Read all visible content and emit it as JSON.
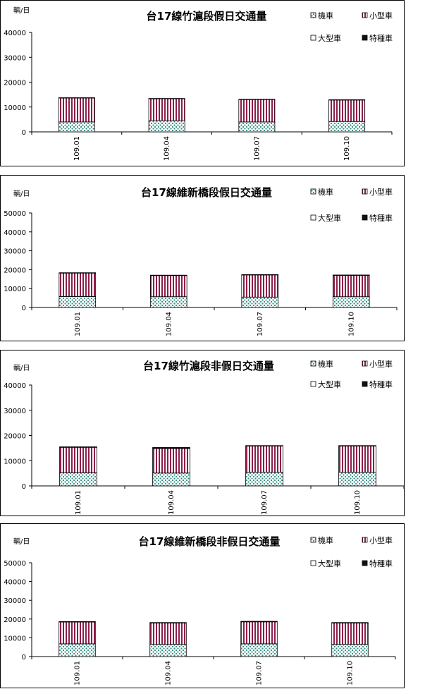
{
  "chart_data": [
    {
      "type": "bar",
      "stacked": true,
      "title": "台17線竹滬段假日交通量",
      "unit_label": "輛/日",
      "categories": [
        "109.01",
        "109.04",
        "109.07",
        "109.10"
      ],
      "ylim": [
        0,
        40000
      ],
      "yticks": [
        "0",
        "10000",
        "20000",
        "30000",
        "40000"
      ],
      "series": [
        {
          "name": "機車",
          "values": [
            4000,
            4500,
            4000,
            4200
          ]
        },
        {
          "name": "小型車",
          "values": [
            9600,
            8800,
            9000,
            8600
          ]
        },
        {
          "name": "大型車",
          "values": [
            0,
            0,
            0,
            0
          ]
        },
        {
          "name": "特種車",
          "values": [
            150,
            150,
            150,
            150
          ]
        }
      ],
      "legend": "top-right"
    },
    {
      "type": "bar",
      "stacked": true,
      "title": "台17線維新橋段假日交通量",
      "unit_label": "輛/日",
      "categories": [
        "109.01",
        "109.04",
        "109.07",
        "109.10"
      ],
      "ylim": [
        0,
        50000
      ],
      "yticks": [
        "0",
        "10000",
        "20000",
        "30000",
        "40000",
        "50000"
      ],
      "series": [
        {
          "name": "機車",
          "values": [
            5800,
            5700,
            5500,
            5700
          ]
        },
        {
          "name": "小型車",
          "values": [
            12400,
            11200,
            11700,
            11300
          ]
        },
        {
          "name": "大型車",
          "values": [
            0,
            0,
            0,
            0
          ]
        },
        {
          "name": "特種車",
          "values": [
            200,
            200,
            200,
            200
          ]
        }
      ],
      "legend": "top-right"
    },
    {
      "type": "bar",
      "stacked": true,
      "title": "台17線竹滬段非假日交通量",
      "unit_label": "輛/日",
      "categories": [
        "109.01",
        "109.04",
        "109.07",
        "109.10"
      ],
      "ylim": [
        0,
        40000
      ],
      "yticks": [
        "0",
        "10000",
        "20000",
        "30000",
        "40000"
      ],
      "series": [
        {
          "name": "機車",
          "values": [
            5200,
            5100,
            5400,
            5400
          ]
        },
        {
          "name": "小型車",
          "values": [
            10100,
            9700,
            10400,
            10400
          ]
        },
        {
          "name": "大型車",
          "values": [
            0,
            0,
            0,
            0
          ]
        },
        {
          "name": "特種車",
          "values": [
            200,
            450,
            200,
            200
          ]
        }
      ],
      "legend": "top-right"
    },
    {
      "type": "bar",
      "stacked": true,
      "title": "台17線維新橋段非假日交通量",
      "unit_label": "輛/日",
      "categories": [
        "109.01",
        "109.04",
        "109.07",
        "109.10"
      ],
      "ylim": [
        0,
        50000
      ],
      "yticks": [
        "0",
        "10000",
        "20000",
        "30000",
        "40000",
        "50000"
      ],
      "series": [
        {
          "name": "機車",
          "values": [
            6800,
            6500,
            6800,
            6500
          ]
        },
        {
          "name": "小型車",
          "values": [
            11600,
            11400,
            11700,
            11400
          ]
        },
        {
          "name": "大型車",
          "values": [
            0,
            0,
            0,
            0
          ]
        },
        {
          "name": "特種車",
          "values": [
            250,
            250,
            300,
            250
          ]
        }
      ],
      "legend": "top-right"
    }
  ]
}
